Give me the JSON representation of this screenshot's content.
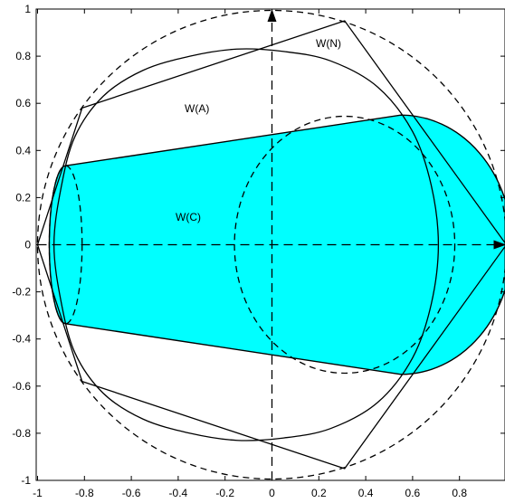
{
  "chart_data": {
    "type": "diagram",
    "xlim": [
      -1,
      1
    ],
    "ylim": [
      -1,
      1
    ],
    "x_ticks": [
      "-1",
      "-0.8",
      "-0.6",
      "-0.4",
      "-0.2",
      "0",
      "0.2",
      "0.4",
      "0.6",
      "0.8"
    ],
    "y_ticks": [
      "1",
      "0.8",
      "0.6",
      "0.4",
      "0.2",
      "0",
      "-0.2",
      "-0.4",
      "-0.6",
      "-0.8",
      "-1"
    ],
    "x_tick_values": [
      -1,
      -0.8,
      -0.6,
      -0.4,
      -0.2,
      0,
      0.2,
      0.4,
      0.6,
      0.8
    ],
    "y_tick_values": [
      1,
      0.8,
      0.6,
      0.4,
      0.2,
      0,
      -0.2,
      -0.4,
      -0.6,
      -0.8,
      -1
    ],
    "labels": {
      "w_n": "W(N)",
      "w_a": "W(A)",
      "w_c": "W(C)"
    },
    "unit_circle": {
      "cx": 0,
      "cy": 0,
      "r": 1,
      "style": "dashed"
    },
    "polygon_W_N": [
      [
        -1,
        0
      ],
      [
        -0.81,
        0.58
      ],
      [
        0.31,
        0.95
      ],
      [
        1,
        0
      ],
      [
        0.31,
        -0.95
      ],
      [
        -0.81,
        -0.58
      ]
    ],
    "W_C": {
      "left_ellipse": {
        "cx": -0.88,
        "rx": 0.07,
        "ry": 0.335
      },
      "right_ellipse": {
        "cx": 0.31,
        "rx": 0.47,
        "ry": 0.545
      },
      "tangent_top": [
        [
          -0.88,
          0.335
        ],
        [
          0.55,
          0.55
        ]
      ],
      "tangent_bottom": [
        [
          -0.88,
          -0.335
        ],
        [
          0.55,
          -0.55
        ]
      ],
      "fill_color": "#00FFFF"
    },
    "W_A_curve": [
      [
        -0.9,
        0.24
      ],
      [
        -0.84,
        0.46
      ],
      [
        -0.72,
        0.63
      ],
      [
        -0.55,
        0.74
      ],
      [
        -0.35,
        0.8
      ],
      [
        -0.15,
        0.83
      ],
      [
        0.05,
        0.82
      ],
      [
        0.25,
        0.78
      ],
      [
        0.45,
        0.67
      ],
      [
        0.6,
        0.48
      ],
      [
        0.68,
        0.25
      ],
      [
        0.71,
        0
      ],
      [
        0.68,
        -0.25
      ],
      [
        0.6,
        -0.48
      ],
      [
        0.45,
        -0.67
      ],
      [
        0.25,
        -0.78
      ],
      [
        0.05,
        -0.82
      ],
      [
        -0.15,
        -0.83
      ],
      [
        -0.35,
        -0.8
      ],
      [
        -0.55,
        -0.74
      ],
      [
        -0.72,
        -0.63
      ],
      [
        -0.84,
        -0.46
      ],
      [
        -0.9,
        -0.24
      ],
      [
        -0.93,
        0
      ]
    ],
    "colors": {
      "fill": "#00FFFF",
      "stroke": "#000000"
    }
  }
}
